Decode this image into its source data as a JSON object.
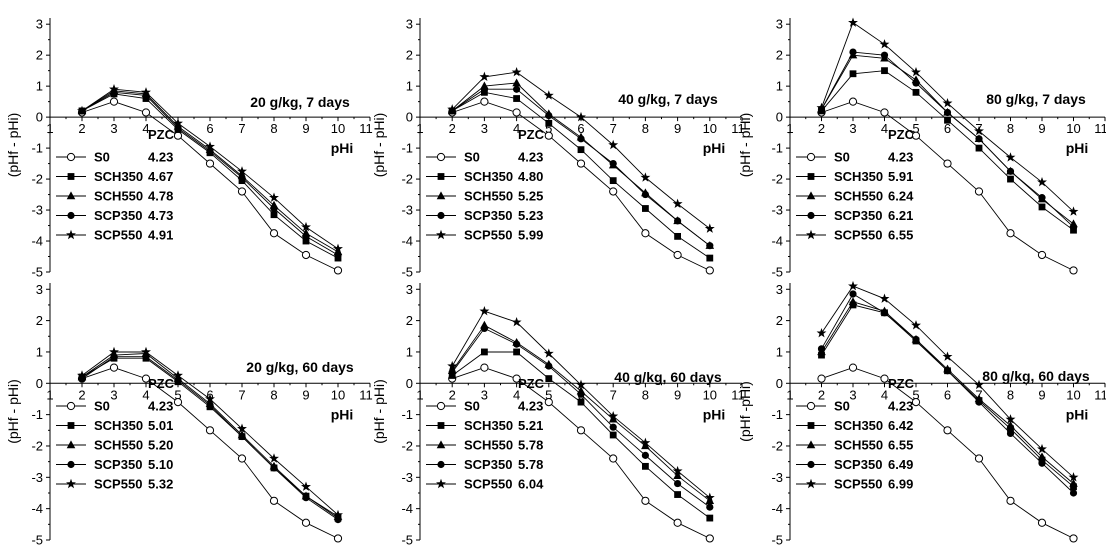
{
  "figure": {
    "ylabel": "(pHf - pHi)",
    "xlabel": "pHi",
    "legend_header": "PZC",
    "x_ticks": [
      "1",
      "2",
      "3",
      "4",
      "5",
      "6",
      "7",
      "8",
      "9",
      "10",
      "11"
    ],
    "y_ticks_top": [
      "-5",
      "-4",
      "-3",
      "-2",
      "-1",
      "0",
      "1",
      "2",
      "3"
    ],
    "y_ticks_bottom": [
      "-5",
      "-4",
      "-3",
      "-2",
      "-1",
      "0",
      "1",
      "2",
      "3"
    ],
    "ylabel_alt": "(pHf -pHi)"
  },
  "chart_data": [
    {
      "type": "line",
      "annotation": "20 g/kg, 7 days",
      "xlabel": "pHi",
      "ylabel": "(pHf - pHi)",
      "xlim": [
        1,
        11
      ],
      "ylim": [
        -5,
        3.2
      ],
      "x": [
        2,
        3,
        4,
        5,
        6,
        7,
        8,
        9,
        10
      ],
      "series": [
        {
          "name": "S0",
          "pzc": "4.23",
          "marker": "circle-open",
          "values": [
            0.15,
            0.5,
            0.15,
            -0.6,
            -1.5,
            -2.4,
            -3.75,
            -4.45,
            -4.95
          ]
        },
        {
          "name": "SCH350",
          "pzc": "4.67",
          "marker": "square",
          "values": [
            0.2,
            0.75,
            0.6,
            -0.4,
            -1.15,
            -2.05,
            -3.15,
            -4.0,
            -4.55
          ]
        },
        {
          "name": "SCH550",
          "pzc": "4.78",
          "marker": "triangle",
          "values": [
            0.2,
            0.85,
            0.75,
            -0.3,
            -1.05,
            -1.9,
            -2.85,
            -3.75,
            -4.35
          ]
        },
        {
          "name": "SCP350",
          "pzc": "4.73",
          "marker": "circle",
          "values": [
            0.2,
            0.8,
            0.7,
            -0.35,
            -1.1,
            -1.95,
            -2.95,
            -3.85,
            -4.45
          ]
        },
        {
          "name": "SCP550",
          "pzc": "4.91",
          "marker": "star",
          "values": [
            0.2,
            0.9,
            0.8,
            -0.2,
            -0.95,
            -1.75,
            -2.6,
            -3.55,
            -4.25
          ]
        }
      ]
    },
    {
      "type": "line",
      "annotation": "40 g/kg, 7 days",
      "xlabel": "pHi",
      "ylabel": "(pHf - pHi)",
      "xlim": [
        1,
        11
      ],
      "ylim": [
        -5,
        3.2
      ],
      "x": [
        2,
        3,
        4,
        5,
        6,
        7,
        8,
        9,
        10
      ],
      "series": [
        {
          "name": "S0",
          "pzc": "4.23",
          "marker": "circle-open",
          "values": [
            0.15,
            0.5,
            0.15,
            -0.6,
            -1.5,
            -2.4,
            -3.75,
            -4.45,
            -4.95
          ]
        },
        {
          "name": "SCH350",
          "pzc": "4.80",
          "marker": "square",
          "values": [
            0.2,
            0.8,
            0.6,
            -0.2,
            -1.05,
            -2.05,
            -2.95,
            -3.85,
            -4.55
          ]
        },
        {
          "name": "SCH550",
          "pzc": "5.25",
          "marker": "triangle",
          "values": [
            0.2,
            1.0,
            1.1,
            0.1,
            -0.65,
            -1.55,
            -2.45,
            -3.35,
            -4.15
          ]
        },
        {
          "name": "SCP350",
          "pzc": "5.23",
          "marker": "circle",
          "values": [
            0.2,
            0.9,
            0.9,
            0.05,
            -0.7,
            -1.5,
            -2.5,
            -3.35,
            -4.15
          ]
        },
        {
          "name": "SCP550",
          "pzc": "5.99",
          "marker": "star",
          "values": [
            0.25,
            1.3,
            1.45,
            0.7,
            0.0,
            -0.9,
            -1.95,
            -2.8,
            -3.6
          ]
        }
      ]
    },
    {
      "type": "line",
      "annotation": "80 g/kg, 7 days",
      "xlabel": "pHi",
      "ylabel": "(pHf - pHi)",
      "xlim": [
        1,
        11
      ],
      "ylim": [
        -5,
        3.2
      ],
      "x": [
        2,
        3,
        4,
        5,
        6,
        7,
        8,
        9,
        10
      ],
      "series": [
        {
          "name": "S0",
          "pzc": "4.23",
          "marker": "circle-open",
          "values": [
            0.15,
            0.5,
            0.15,
            -0.6,
            -1.5,
            -2.4,
            -3.75,
            -4.45,
            -4.95
          ]
        },
        {
          "name": "SCH350",
          "pzc": "5.91",
          "marker": "square",
          "values": [
            0.2,
            1.4,
            1.5,
            0.8,
            -0.1,
            -1.0,
            -2.0,
            -2.9,
            -3.65
          ]
        },
        {
          "name": "SCH550",
          "pzc": "6.24",
          "marker": "triangle",
          "values": [
            0.25,
            2.0,
            1.9,
            1.2,
            0.15,
            -0.7,
            -1.75,
            -2.65,
            -3.45
          ]
        },
        {
          "name": "SCP350",
          "pzc": "6.21",
          "marker": "circle",
          "values": [
            0.25,
            2.1,
            2.0,
            1.1,
            0.15,
            -0.7,
            -1.75,
            -2.6,
            -3.55
          ]
        },
        {
          "name": "SCP550",
          "pzc": "6.55",
          "marker": "star",
          "values": [
            0.3,
            3.05,
            2.35,
            1.45,
            0.45,
            -0.45,
            -1.3,
            -2.1,
            -3.05
          ]
        }
      ]
    },
    {
      "type": "line",
      "annotation": "20 g/kg, 60 days",
      "xlabel": "pHi",
      "ylabel": "(pHf - pHi)",
      "xlim": [
        1,
        11
      ],
      "ylim": [
        -5,
        3.2
      ],
      "x": [
        2,
        3,
        4,
        5,
        6,
        7,
        8,
        9,
        10
      ],
      "series": [
        {
          "name": "S0",
          "pzc": "4.23",
          "marker": "circle-open",
          "values": [
            0.15,
            0.5,
            0.15,
            -0.6,
            -1.5,
            -2.4,
            -3.75,
            -4.45,
            -4.95
          ]
        },
        {
          "name": "SCH350",
          "pzc": "5.01",
          "marker": "square",
          "values": [
            0.2,
            0.8,
            0.8,
            0.05,
            -0.75,
            -1.7,
            -2.7,
            -3.6,
            -4.3
          ]
        },
        {
          "name": "SCH550",
          "pzc": "5.20",
          "marker": "triangle",
          "values": [
            0.2,
            0.9,
            0.95,
            0.15,
            -0.65,
            -1.65,
            -2.65,
            -3.6,
            -4.25
          ]
        },
        {
          "name": "SCP350",
          "pzc": "5.10",
          "marker": "circle",
          "values": [
            0.15,
            0.85,
            0.85,
            0.1,
            -0.7,
            -1.7,
            -2.7,
            -3.65,
            -4.35
          ]
        },
        {
          "name": "SCP550",
          "pzc": "5.32",
          "marker": "star",
          "values": [
            0.25,
            1.0,
            1.0,
            0.25,
            -0.5,
            -1.45,
            -2.4,
            -3.3,
            -4.2
          ]
        }
      ]
    },
    {
      "type": "line",
      "annotation": "40 g/kg, 60 days",
      "xlabel": "pHi",
      "ylabel": "(pHf - pHi)",
      "xlim": [
        1,
        11
      ],
      "ylim": [
        -5,
        3.2
      ],
      "x": [
        2,
        3,
        4,
        5,
        6,
        7,
        8,
        9,
        10
      ],
      "series": [
        {
          "name": "S0",
          "pzc": "4.23",
          "marker": "circle-open",
          "values": [
            0.15,
            0.5,
            0.15,
            -0.6,
            -1.5,
            -2.4,
            -3.75,
            -4.45,
            -4.95
          ]
        },
        {
          "name": "SCH350",
          "pzc": "5.21",
          "marker": "square",
          "values": [
            0.25,
            1.0,
            1.0,
            0.15,
            -0.6,
            -1.65,
            -2.65,
            -3.55,
            -4.3
          ]
        },
        {
          "name": "SCH550",
          "pzc": "5.78",
          "marker": "triangle",
          "values": [
            0.4,
            1.85,
            1.3,
            0.6,
            -0.25,
            -1.15,
            -2.0,
            -2.95,
            -3.75
          ]
        },
        {
          "name": "SCP350",
          "pzc": "5.78",
          "marker": "circle",
          "values": [
            0.35,
            1.75,
            1.25,
            0.55,
            -0.35,
            -1.4,
            -2.3,
            -3.2,
            -3.95
          ]
        },
        {
          "name": "SCP550",
          "pzc": "6.04",
          "marker": "star",
          "values": [
            0.55,
            2.3,
            1.95,
            0.95,
            -0.05,
            -1.05,
            -1.9,
            -2.8,
            -3.65
          ]
        }
      ]
    },
    {
      "type": "line",
      "annotation": "80 g/kg, 60 days",
      "xlabel": "pHi",
      "ylabel": "(pHf -pHi)",
      "xlim": [
        1,
        11
      ],
      "ylim": [
        -5,
        3.2
      ],
      "x": [
        2,
        3,
        4,
        5,
        6,
        7,
        8,
        9,
        10
      ],
      "series": [
        {
          "name": "S0",
          "pzc": "4.23",
          "marker": "circle-open",
          "values": [
            0.15,
            0.5,
            0.15,
            -0.6,
            -1.5,
            -2.4,
            -3.75,
            -4.45,
            -4.95
          ]
        },
        {
          "name": "SCH350",
          "pzc": "6.42",
          "marker": "square",
          "values": [
            0.9,
            2.5,
            2.25,
            1.35,
            0.4,
            -0.55,
            -1.45,
            -2.45,
            -3.3
          ]
        },
        {
          "name": "SCH550",
          "pzc": "6.55",
          "marker": "triangle",
          "values": [
            1.0,
            2.6,
            2.3,
            1.4,
            0.45,
            -0.5,
            -1.35,
            -2.35,
            -3.2
          ]
        },
        {
          "name": "SCP350",
          "pzc": "6.49",
          "marker": "circle",
          "values": [
            1.1,
            2.85,
            2.25,
            1.4,
            0.4,
            -0.6,
            -1.6,
            -2.55,
            -3.5
          ]
        },
        {
          "name": "SCP550",
          "pzc": "6.99",
          "marker": "star",
          "values": [
            1.6,
            3.1,
            2.7,
            1.85,
            0.85,
            -0.05,
            -1.15,
            -2.1,
            -3.0
          ]
        }
      ]
    }
  ]
}
